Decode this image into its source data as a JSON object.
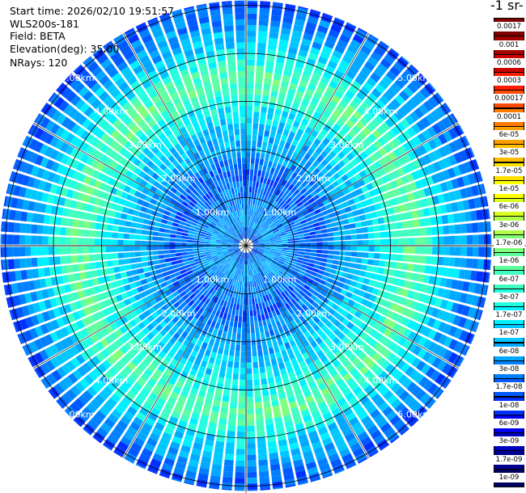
{
  "header": {
    "start_time": "Start time: 2026/02/10 19:51:57",
    "instrument": "WLS200s-181",
    "field": "Field: BETA",
    "elevation": "Elevation(deg): 35.00",
    "nrays": "NRays: 120"
  },
  "colorbar": {
    "title": "-1 sr-",
    "labels": [
      "0.0017",
      "0.001",
      "0.0006",
      "0.0003",
      "0.00017",
      "0.0001",
      "6e-05",
      "3e-05",
      "1.7e-05",
      "1e-05",
      "6e-06",
      "3e-06",
      "1.7e-06",
      "1e-06",
      "6e-07",
      "3e-07",
      "1.7e-07",
      "1e-07",
      "6e-08",
      "3e-08",
      "1.7e-08",
      "1e-08",
      "6e-09",
      "3e-09",
      "1.7e-09",
      "1e-09"
    ],
    "colors": [
      "#7f0000",
      "#a30000",
      "#cc0000",
      "#ff1a00",
      "#ff4a00",
      "#ff7a00",
      "#ff9e00",
      "#ffbd00",
      "#ffe000",
      "#ffff00",
      "#d8ff1f",
      "#b0ff47",
      "#80ff7a",
      "#60ffa0",
      "#40ffc0",
      "#22ffe0",
      "#00f0ff",
      "#00c8ff",
      "#00a8ff",
      "#0080ff",
      "#0058ff",
      "#0030ff",
      "#0000ee",
      "#0000c0",
      "#000090",
      "#000060"
    ]
  },
  "chart_data": {
    "type": "heatmap",
    "subtype": "polar-ppi",
    "n_rays": 120,
    "elevation_deg": 35.0,
    "range_km": [
      0,
      5.1
    ],
    "range_rings_km": [
      1,
      2,
      3,
      4,
      5
    ],
    "ring_labels": [
      "1.00km",
      "2.00km",
      "3.00km",
      "4.00km",
      "5.00km"
    ],
    "spoke_angles_deg": [
      0,
      30,
      60,
      90,
      120,
      150,
      180,
      210,
      240,
      270,
      300,
      330
    ],
    "radial_profile": [
      {
        "range_km": 0.0,
        "beta": 1e-08
      },
      {
        "range_km": 0.5,
        "beta": 6e-08
      },
      {
        "range_km": 1.0,
        "beta": 3e-08
      },
      {
        "range_km": 1.5,
        "beta": 1.7e-08
      },
      {
        "range_km": 2.0,
        "beta": 6e-08
      },
      {
        "range_km": 2.5,
        "beta": 1e-07
      },
      {
        "range_km": 3.0,
        "beta": 3e-07
      },
      {
        "range_km": 3.5,
        "beta": 1e-06
      },
      {
        "range_km": 4.0,
        "beta": 1.7e-07
      },
      {
        "range_km": 4.5,
        "beta": 6e-08
      },
      {
        "range_km": 5.0,
        "beta": 1.7e-08
      }
    ],
    "colorscale": "log",
    "colorbar_range": [
      1e-09,
      0.0017
    ]
  }
}
